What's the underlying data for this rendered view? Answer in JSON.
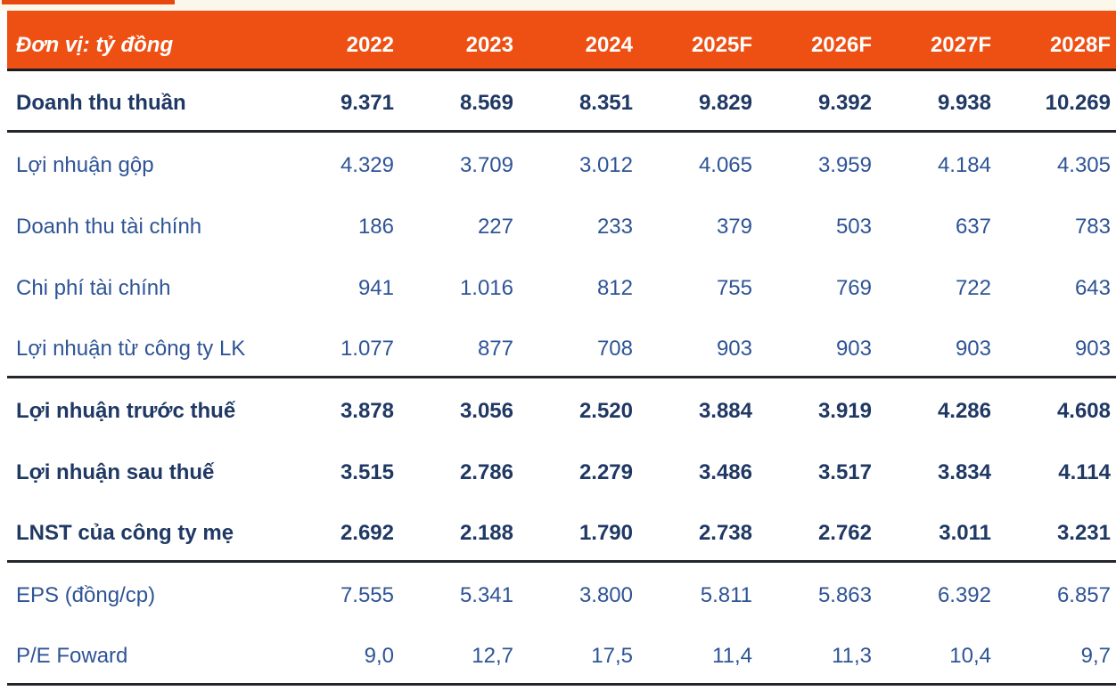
{
  "table": {
    "unit_label": "Đơn vị: tỷ đồng",
    "columns": [
      "2022",
      "2023",
      "2024",
      "2025F",
      "2026F",
      "2027F",
      "2028F"
    ],
    "rows": [
      {
        "label": "Doanh thu thuần",
        "bold": true,
        "values": [
          "9.371",
          "8.569",
          "8.351",
          "9.829",
          "9.392",
          "9.938",
          "10.269"
        ]
      },
      {
        "label": "Lợi nhuận gộp",
        "bold": false,
        "values": [
          "4.329",
          "3.709",
          "3.012",
          "4.065",
          "3.959",
          "4.184",
          "4.305"
        ]
      },
      {
        "label": "Doanh thu tài chính",
        "bold": false,
        "values": [
          "186",
          "227",
          "233",
          "379",
          "503",
          "637",
          "783"
        ]
      },
      {
        "label": "Chi phí tài chính",
        "bold": false,
        "values": [
          "941",
          "1.016",
          "812",
          "755",
          "769",
          "722",
          "643"
        ]
      },
      {
        "label": "Lợi nhuận từ công ty LK",
        "bold": false,
        "values": [
          "1.077",
          "877",
          "708",
          "903",
          "903",
          "903",
          "903"
        ]
      },
      {
        "label": "Lợi nhuận trước thuế",
        "bold": true,
        "values": [
          "3.878",
          "3.056",
          "2.520",
          "3.884",
          "3.919",
          "4.286",
          "4.608"
        ]
      },
      {
        "label": "Lợi nhuận sau thuế",
        "bold": true,
        "values": [
          "3.515",
          "2.786",
          "2.279",
          "3.486",
          "3.517",
          "3.834",
          "4.114"
        ]
      },
      {
        "label": "LNST của công ty mẹ",
        "bold": true,
        "values": [
          "2.692",
          "2.188",
          "1.790",
          "2.738",
          "2.762",
          "3.011",
          "3.231"
        ]
      },
      {
        "label": "EPS (đồng/cp)",
        "bold": false,
        "values": [
          "7.555",
          "5.341",
          "3.800",
          "5.811",
          "5.863",
          "6.392",
          "6.857"
        ]
      },
      {
        "label": "P/E Foward",
        "bold": false,
        "values": [
          "9,0",
          "12,7",
          "17,5",
          "11,4",
          "11,3",
          "10,4",
          "9,7"
        ]
      }
    ],
    "colors": {
      "header_bg": "#ee5014",
      "header_text": "#ffffff",
      "bold_row_text": "#1f3864",
      "regular_row_text": "#2e5496",
      "divider_line": "#23272d",
      "top_strip_bg": "#fbf7eb",
      "top_sliver": "#e8480e"
    }
  }
}
